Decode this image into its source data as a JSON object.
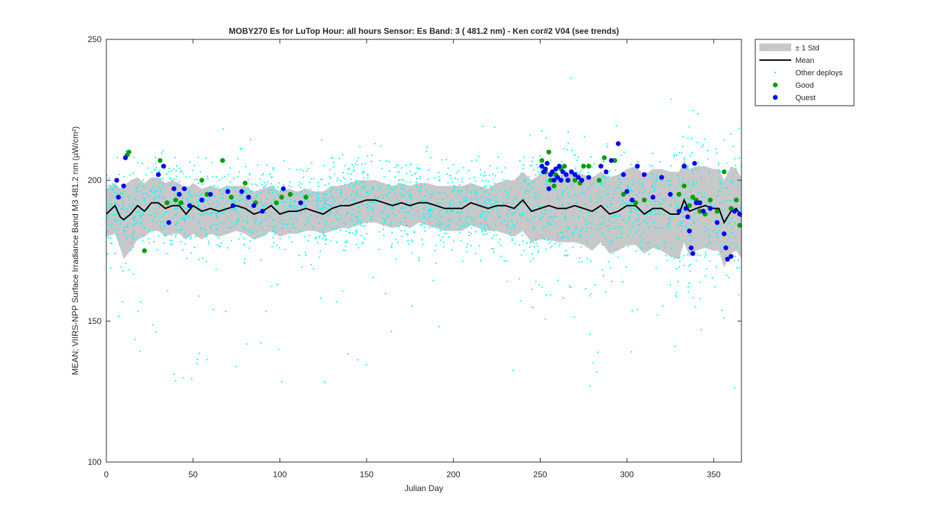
{
  "chart_data": {
    "type": "scatter",
    "title": "MOBY270   Es for LuTop  Hour: all hours  Sensor: Es Band: 3 ( 481.2 nm)  - Ken cor#2 V04 (see trends)",
    "xlabel": "Julian Day",
    "ylabel": "MEAN: VIIRS-NPP Surface Irradiance Band M3 481.2 nm (µW/cm²)",
    "xlim": [
      0,
      366
    ],
    "ylim": [
      100,
      250
    ],
    "x_ticks": [
      0,
      50,
      100,
      150,
      200,
      250,
      300,
      350
    ],
    "y_ticks": [
      100,
      150,
      200,
      250
    ],
    "grid": false,
    "legend_position": "outside-top-right",
    "colors": {
      "std_band": "#c8c8c8",
      "mean": "#000000",
      "other": "#00ffff",
      "good": "#00a000",
      "quest": "#0000ff"
    },
    "legend": [
      {
        "key": "std",
        "label": "± 1 Std"
      },
      {
        "key": "mean",
        "label": "Mean"
      },
      {
        "key": "other",
        "label": "Other deploys"
      },
      {
        "key": "good",
        "label": "Good"
      },
      {
        "key": "quest",
        "label": "Quest"
      }
    ],
    "mean": {
      "x": [
        0,
        5,
        8,
        10,
        14,
        18,
        22,
        26,
        30,
        34,
        38,
        42,
        46,
        50,
        55,
        60,
        65,
        70,
        75,
        80,
        85,
        90,
        95,
        100,
        105,
        110,
        115,
        120,
        125,
        130,
        135,
        140,
        145,
        150,
        155,
        160,
        165,
        170,
        175,
        180,
        185,
        190,
        195,
        200,
        205,
        210,
        215,
        220,
        225,
        230,
        235,
        240,
        245,
        250,
        255,
        260,
        265,
        270,
        275,
        280,
        285,
        290,
        295,
        300,
        305,
        310,
        315,
        320,
        325,
        330,
        333,
        336,
        340,
        345,
        350,
        353,
        356,
        360,
        363,
        366
      ],
      "y": [
        188,
        191,
        187,
        186,
        188,
        191,
        189,
        192,
        192,
        190,
        191,
        191,
        188,
        191,
        189,
        190,
        189,
        190,
        191,
        190,
        188,
        189,
        191,
        188,
        189,
        189,
        190,
        189,
        188,
        190,
        191,
        191,
        192,
        193,
        193,
        192,
        191,
        192,
        191,
        192,
        192,
        191,
        190,
        190,
        190,
        192,
        191,
        190,
        191,
        191,
        190,
        193,
        189,
        190,
        191,
        190,
        190,
        191,
        190,
        189,
        191,
        188,
        189,
        191,
        191,
        188,
        190,
        190,
        188,
        188,
        193,
        189,
        190,
        191,
        190,
        190,
        185,
        189,
        190,
        187
      ]
    },
    "std": {
      "x": [
        0,
        5,
        8,
        10,
        14,
        18,
        22,
        26,
        30,
        34,
        38,
        42,
        46,
        50,
        55,
        60,
        65,
        70,
        75,
        80,
        85,
        90,
        95,
        100,
        105,
        110,
        115,
        120,
        125,
        130,
        135,
        140,
        145,
        150,
        155,
        160,
        165,
        170,
        175,
        180,
        185,
        190,
        195,
        200,
        205,
        210,
        215,
        220,
        225,
        230,
        235,
        240,
        245,
        250,
        255,
        260,
        265,
        270,
        275,
        280,
        285,
        290,
        295,
        300,
        305,
        310,
        315,
        320,
        325,
        330,
        333,
        336,
        340,
        345,
        350,
        353,
        356,
        360,
        363,
        366
      ],
      "upper": [
        197,
        199,
        197,
        198,
        200,
        201,
        199,
        201,
        201,
        199,
        200,
        199,
        197,
        199,
        197,
        198,
        197,
        198,
        198,
        198,
        196,
        197,
        198,
        196,
        197,
        196,
        197,
        196,
        196,
        198,
        198,
        199,
        200,
        200,
        200,
        199,
        198,
        199,
        198,
        199,
        199,
        198,
        198,
        198,
        198,
        199,
        198,
        197,
        199,
        200,
        200,
        203,
        200,
        202,
        203,
        202,
        202,
        203,
        202,
        201,
        203,
        201,
        202,
        204,
        205,
        202,
        204,
        204,
        203,
        203,
        207,
        204,
        205,
        205,
        204,
        204,
        200,
        205,
        204,
        201
      ],
      "lower": [
        180,
        181,
        176,
        172,
        175,
        179,
        180,
        182,
        182,
        180,
        181,
        181,
        179,
        181,
        179,
        181,
        180,
        181,
        182,
        181,
        179,
        180,
        182,
        180,
        181,
        181,
        182,
        182,
        181,
        182,
        183,
        183,
        184,
        185,
        185,
        184,
        183,
        184,
        183,
        185,
        184,
        183,
        182,
        182,
        182,
        184,
        183,
        182,
        182,
        181,
        180,
        182,
        178,
        179,
        179,
        178,
        178,
        178,
        177,
        175,
        178,
        174,
        175,
        177,
        177,
        174,
        176,
        175,
        173,
        172,
        178,
        173,
        175,
        176,
        175,
        175,
        169,
        174,
        175,
        172
      ]
    },
    "good": {
      "x": [
        12,
        13,
        22,
        31,
        35,
        40,
        43,
        55,
        58,
        67,
        72,
        80,
        82,
        86,
        98,
        101,
        106,
        115,
        251,
        253,
        255,
        256,
        258,
        259,
        262,
        264,
        266,
        268,
        270,
        273,
        275,
        278,
        284,
        287,
        293,
        298,
        305,
        310,
        330,
        333,
        336,
        338,
        340,
        342,
        345,
        348,
        352,
        356,
        360,
        363,
        365
      ],
      "y": [
        209,
        210,
        175,
        207,
        192,
        193,
        192,
        200,
        195,
        207,
        194,
        199,
        194,
        192,
        192,
        194,
        195,
        194,
        207,
        203,
        210,
        200,
        198,
        202,
        204,
        205,
        200,
        203,
        200,
        199,
        205,
        205,
        200,
        208,
        207,
        195,
        192,
        193,
        195,
        198,
        191,
        194,
        193,
        189,
        188,
        193,
        189,
        203,
        190,
        193,
        184
      ]
    },
    "quest": {
      "x": [
        6,
        7,
        10,
        11,
        30,
        33,
        36,
        39,
        42,
        45,
        48,
        55,
        60,
        70,
        73,
        78,
        82,
        85,
        90,
        102,
        112,
        251,
        252,
        253,
        254,
        255,
        256,
        257,
        258,
        259,
        260,
        261,
        262,
        263,
        265,
        266,
        268,
        270,
        272,
        274,
        278,
        285,
        288,
        291,
        295,
        298,
        300,
        303,
        306,
        310,
        315,
        320,
        325,
        330,
        333,
        334,
        335,
        336,
        337,
        338,
        339,
        340,
        342,
        344,
        348,
        352,
        356,
        357,
        358,
        360,
        362,
        365
      ],
      "y": [
        200,
        194,
        198,
        208,
        202,
        205,
        185,
        197,
        195,
        197,
        191,
        193,
        195,
        196,
        191,
        196,
        194,
        191,
        189,
        197,
        192,
        205,
        203,
        204,
        206,
        197,
        202,
        203,
        200,
        204,
        201,
        205,
        200,
        203,
        202,
        200,
        203,
        202,
        201,
        200,
        201,
        205,
        203,
        207,
        213,
        202,
        196,
        193,
        205,
        202,
        194,
        201,
        195,
        189,
        205,
        190,
        187,
        182,
        176,
        174,
        206,
        192,
        192,
        189,
        190,
        185,
        181,
        176,
        172,
        173,
        189,
        188
      ]
    }
  }
}
